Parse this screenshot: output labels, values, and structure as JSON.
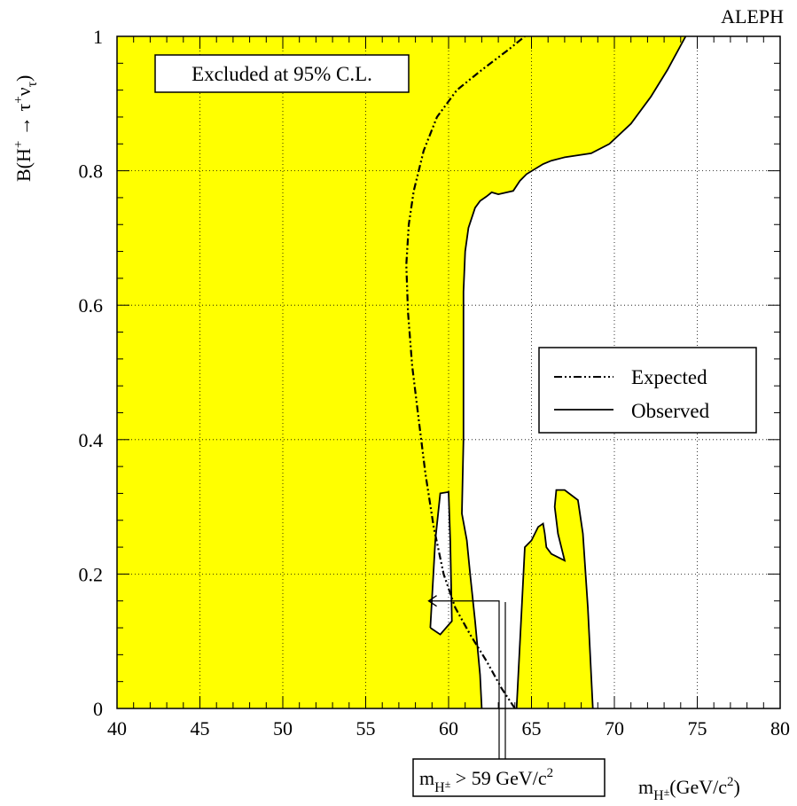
{
  "chart_data": {
    "type": "area",
    "title": "ALEPH",
    "xlabel": {
      "base": "m",
      "sub": "H",
      "subsup": "±",
      "unit_open": "(GeV/c",
      "unit_sup": "2",
      "unit_close": ")"
    },
    "ylabel": {
      "prefix": "B(H",
      "sup1": "+",
      "arrow": " → τ",
      "sup2": "+",
      "nu": "ν",
      "nu_sub": "τ",
      "close": ")"
    },
    "xlim": [
      40,
      80
    ],
    "ylim": [
      0,
      1
    ],
    "x_ticks": [
      40,
      45,
      50,
      55,
      60,
      65,
      70,
      75,
      80
    ],
    "y_ticks": [
      0,
      0.2,
      0.4,
      0.6,
      0.8,
      1
    ],
    "grid": true,
    "legend_position": "right",
    "colors": {
      "excluded_fill": "#ffff00",
      "line": "#000000"
    },
    "excluded_label": "Excluded at 95% C.L.",
    "limit_label": {
      "base": "m",
      "sub": "H",
      "subsup": "±",
      "rel": " > 59 GeV/c",
      "sup": "2"
    },
    "limit_point": [
      60.1,
      0.16
    ],
    "series": [
      {
        "name": "Expected",
        "style": "dash-dot",
        "points": [
          [
            64.0,
            0.0
          ],
          [
            63.2,
            0.03
          ],
          [
            62.3,
            0.07
          ],
          [
            61.3,
            0.11
          ],
          [
            60.4,
            0.15
          ],
          [
            59.7,
            0.2
          ],
          [
            59.1,
            0.27
          ],
          [
            58.6,
            0.35
          ],
          [
            58.2,
            0.43
          ],
          [
            57.8,
            0.51
          ],
          [
            57.55,
            0.59
          ],
          [
            57.45,
            0.66
          ],
          [
            57.6,
            0.72
          ],
          [
            57.9,
            0.77
          ],
          [
            58.5,
            0.83
          ],
          [
            59.3,
            0.88
          ],
          [
            60.5,
            0.92
          ],
          [
            62.0,
            0.95
          ],
          [
            63.6,
            0.98
          ],
          [
            64.6,
            1.0
          ]
        ]
      },
      {
        "name": "Observed",
        "style": "solid",
        "region": "excluded-boundary",
        "main_boundary": [
          [
            74.3,
            1.0
          ],
          [
            73.2,
            0.95
          ],
          [
            72.2,
            0.91
          ],
          [
            71.0,
            0.87
          ],
          [
            69.7,
            0.84
          ],
          [
            68.6,
            0.826
          ],
          [
            67.0,
            0.82
          ],
          [
            66.2,
            0.815
          ],
          [
            65.7,
            0.81
          ],
          [
            64.7,
            0.795
          ],
          [
            64.3,
            0.785
          ],
          [
            63.9,
            0.77
          ],
          [
            63.0,
            0.765
          ],
          [
            62.6,
            0.768
          ],
          [
            62.3,
            0.762
          ],
          [
            61.9,
            0.755
          ],
          [
            61.6,
            0.745
          ],
          [
            61.2,
            0.715
          ],
          [
            61.0,
            0.68
          ],
          [
            60.9,
            0.62
          ],
          [
            60.9,
            0.4
          ],
          [
            60.8,
            0.29
          ],
          [
            61.1,
            0.25
          ],
          [
            61.3,
            0.2
          ],
          [
            61.6,
            0.13
          ],
          [
            61.9,
            0.05
          ],
          [
            62.0,
            0.0
          ]
        ],
        "island_1": [
          [
            58.9,
            0.12
          ],
          [
            59.2,
            0.25
          ],
          [
            59.5,
            0.32
          ],
          [
            60.0,
            0.322
          ],
          [
            60.1,
            0.25
          ],
          [
            60.2,
            0.13
          ],
          [
            59.5,
            0.11
          ],
          [
            58.9,
            0.12
          ]
        ],
        "island_2": [
          [
            64.1,
            0.0
          ],
          [
            64.6,
            0.24
          ],
          [
            65.0,
            0.25
          ],
          [
            65.4,
            0.27
          ],
          [
            65.7,
            0.275
          ],
          [
            65.8,
            0.26
          ],
          [
            65.9,
            0.24
          ],
          [
            66.2,
            0.23
          ],
          [
            67.0,
            0.22
          ],
          [
            66.6,
            0.26
          ],
          [
            66.4,
            0.3
          ],
          [
            66.5,
            0.325
          ],
          [
            67.0,
            0.325
          ],
          [
            67.8,
            0.31
          ],
          [
            68.1,
            0.26
          ],
          [
            68.4,
            0.15
          ],
          [
            68.7,
            0.0
          ]
        ]
      }
    ]
  }
}
